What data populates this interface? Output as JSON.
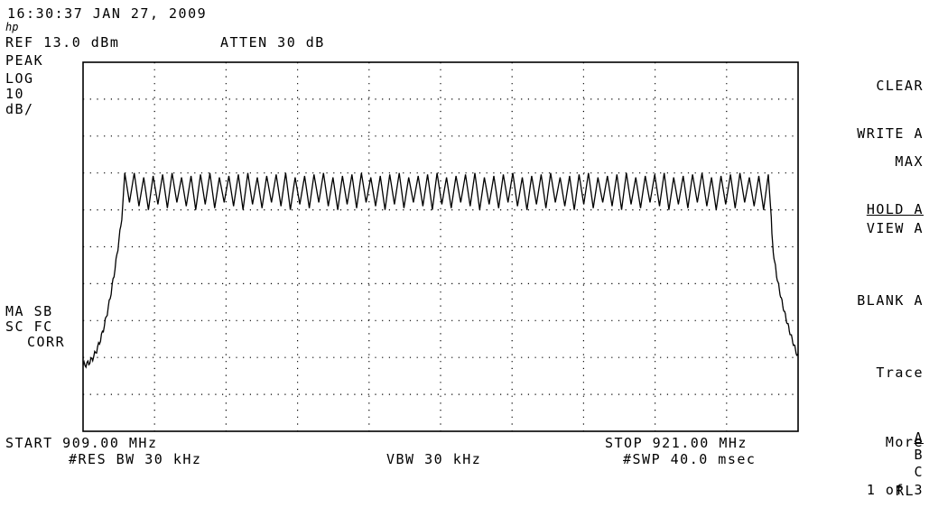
{
  "header": {
    "timestamp": "16:30:37 JAN 27, 2009",
    "logo": "hp",
    "ref_level": "REF 13.0 dBm",
    "atten": "ATTEN 30 dB"
  },
  "left_annotations": {
    "detector": "PEAK",
    "scale_type": "LOG",
    "scale_value": "10",
    "scale_unit": "dB/",
    "status_line1": "MA SB",
    "status_line2": "SC FC",
    "status_line3": "CORR"
  },
  "footer": {
    "start": "START 909.00 MHz",
    "stop": "STOP 921.00 MHz",
    "res_bw": "#RES BW 30 kHz",
    "vbw": "VBW 30 kHz",
    "sweep": "#SWP 40.0 msec"
  },
  "softkeys": {
    "clear_write_line1": "CLEAR",
    "clear_write_line2": "WRITE A",
    "max_hold_line1": "MAX",
    "max_hold_line2": "HOLD A",
    "view": "VIEW A",
    "blank": "BLANK A",
    "trace_line1": "Trace",
    "trace_a": "A",
    "trace_b": "B",
    "trace_c": "C",
    "more_line1": "More",
    "more_line2": "1 of 3",
    "rl": "RL"
  },
  "chart_data": {
    "type": "line",
    "x_start_mhz": 909.0,
    "x_stop_mhz": 921.0,
    "ref_level_dbm": 13.0,
    "db_per_div": 10,
    "grid": true,
    "divisions_x": 10,
    "divisions_y": 10,
    "plateau": {
      "start_mhz": 909.7,
      "stop_mhz": 920.5,
      "peak_level_dbm": -17.0,
      "trough_level_dbm": -25.0,
      "ripple_cycles": 68
    },
    "skirt_start_level_dbm": -69.0,
    "skirt_end_level_dbm": -67.0
  }
}
